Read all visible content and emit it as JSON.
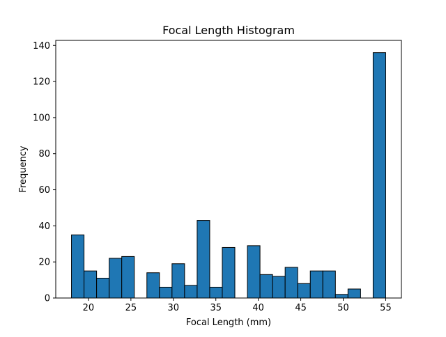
{
  "chart_data": {
    "type": "bar",
    "title": "Focal Length Histogram",
    "xlabel": "Focal Length (mm)",
    "ylabel": "Frequency",
    "xlim": [
      16.15,
      56.85
    ],
    "ylim": [
      0,
      142.8
    ],
    "x_ticks": [
      20,
      25,
      30,
      35,
      40,
      45,
      50,
      55
    ],
    "y_ticks": [
      0,
      20,
      40,
      60,
      80,
      100,
      120,
      140
    ],
    "bin_edges": [
      18,
      19.48,
      20.96,
      22.44,
      23.92,
      25.4,
      26.88,
      28.36,
      29.84,
      31.32,
      32.8,
      34.28,
      35.76,
      37.24,
      38.72,
      40.2,
      41.68,
      43.16,
      44.64,
      46.12,
      47.6,
      49.08,
      50.56,
      52.04,
      53.52,
      55
    ],
    "values": [
      35,
      15,
      11,
      22,
      23,
      0,
      14,
      6,
      19,
      7,
      43,
      6,
      28,
      0,
      29,
      13,
      12,
      17,
      8,
      15,
      15,
      2,
      5,
      0,
      136
    ],
    "bar_color": "#1f77b4",
    "edge_color": "#000000",
    "grid": false,
    "legend": false
  }
}
